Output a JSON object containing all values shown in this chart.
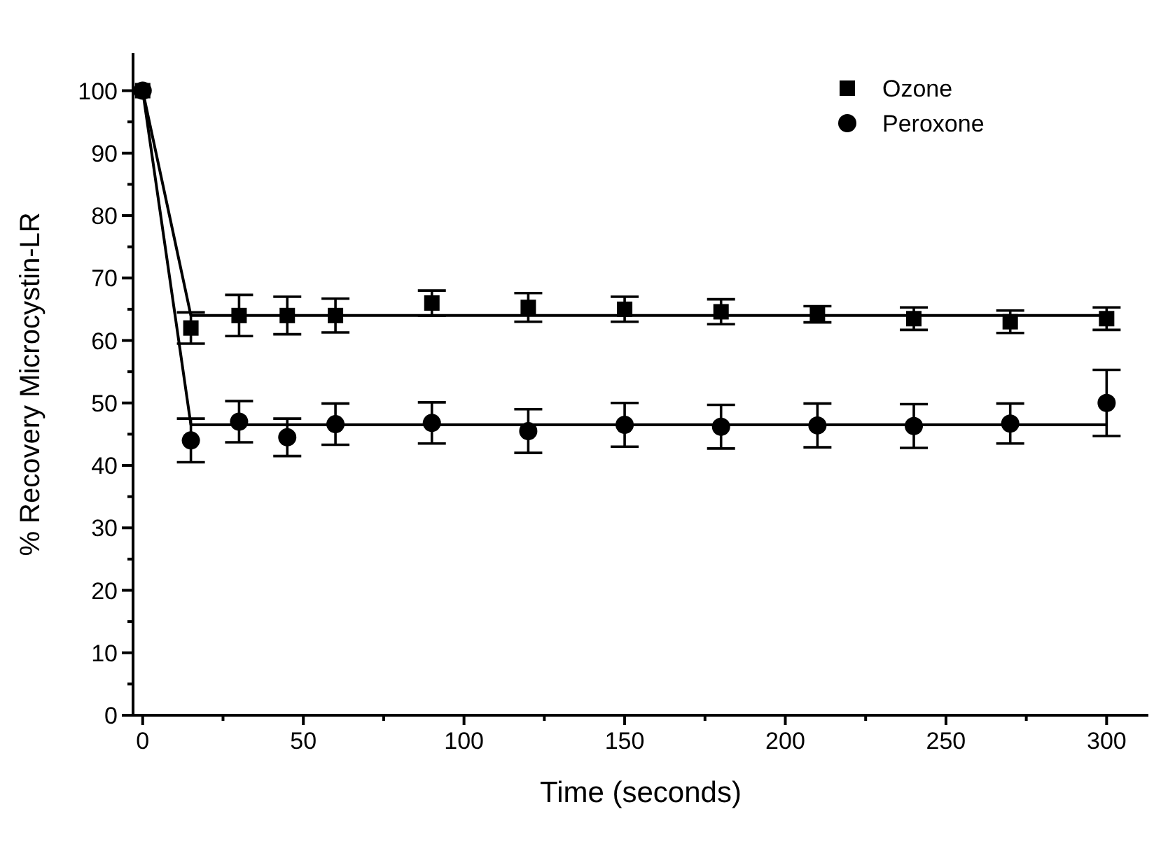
{
  "chart_data": {
    "type": "scatter",
    "xlabel": "Time (seconds)",
    "ylabel": "% Recovery Microcystin-LR",
    "xlim": [
      -3,
      313
    ],
    "ylim": [
      0,
      106
    ],
    "xticks": [
      0,
      {
        "value": 25,
        "label": null
      },
      50,
      {
        "value": 75,
        "label": null
      },
      100,
      {
        "value": 125,
        "label": null
      },
      150,
      {
        "value": 175,
        "label": null
      },
      200,
      {
        "value": 225,
        "label": null
      },
      250,
      {
        "value": 275,
        "label": null
      },
      300
    ],
    "yticks": [
      0,
      {
        "value": 5,
        "label": null
      },
      10,
      {
        "value": 15,
        "label": null
      },
      20,
      {
        "value": 25,
        "label": null
      },
      30,
      {
        "value": 35,
        "label": null
      },
      40,
      {
        "value": 45,
        "label": null
      },
      50,
      {
        "value": 55,
        "label": null
      },
      60,
      {
        "value": 65,
        "label": null
      },
      70,
      {
        "value": 75,
        "label": null
      },
      80,
      {
        "value": 85,
        "label": null
      },
      90,
      {
        "value": 95,
        "label": null
      },
      100
    ],
    "legend": "top right",
    "grid": false,
    "series": [
      {
        "name": "Ozone",
        "marker": "square",
        "color": "#000000",
        "x": [
          0,
          15,
          30,
          45,
          60,
          90,
          120,
          150,
          180,
          210,
          240,
          270,
          300
        ],
        "values": [
          100,
          62,
          64,
          64,
          64,
          66,
          65.3,
          65,
          64.6,
          64.2,
          63.5,
          63,
          63.5
        ],
        "errors": [
          null,
          2.5,
          3.3,
          3,
          2.7,
          2,
          2.3,
          2,
          2,
          1.3,
          1.8,
          1.8,
          1.8
        ]
      },
      {
        "name": "Peroxone",
        "marker": "circle",
        "color": "#000000",
        "x": [
          0,
          15,
          30,
          45,
          60,
          90,
          120,
          150,
          180,
          210,
          240,
          270,
          300
        ],
        "values": [
          100,
          44,
          47,
          44.5,
          46.6,
          46.8,
          45.5,
          46.5,
          46.2,
          46.4,
          46.3,
          46.7,
          50
        ],
        "errors": [
          null,
          3.5,
          3.3,
          3,
          3.3,
          3.3,
          3.5,
          3.5,
          3.5,
          3.5,
          3.5,
          3.2,
          5.3
        ]
      },
      {
        "type": "line",
        "marker": "none",
        "line_style": "solid",
        "color": "#000000",
        "x": [
          0,
          15,
          300
        ],
        "values": [
          100,
          64,
          64
        ]
      },
      {
        "type": "line",
        "marker": "none",
        "line_style": "solid",
        "color": "#000000",
        "x": [
          0,
          15,
          300
        ],
        "values": [
          100,
          46.5,
          46.5
        ]
      }
    ]
  }
}
